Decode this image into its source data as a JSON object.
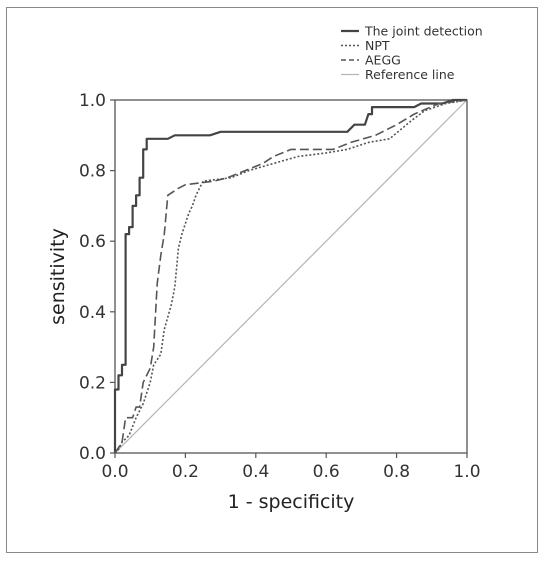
{
  "chart_data": {
    "type": "line",
    "title": "",
    "xlabel": "1 - specificity",
    "ylabel": "sensitivity",
    "xlim": [
      0.0,
      1.0
    ],
    "ylim": [
      0.0,
      1.0
    ],
    "xticks": [
      "0.0",
      "0.2",
      "0.4",
      "0.6",
      "0.8",
      "1.0"
    ],
    "yticks": [
      "0.0",
      "0.2",
      "0.4",
      "0.6",
      "0.8",
      "1.0"
    ],
    "grid": false,
    "legend_position": "top-right",
    "series": [
      {
        "name": "The joint detection",
        "style": "solid",
        "color": "#444444",
        "points": [
          [
            0,
            0
          ],
          [
            0,
            0.18
          ],
          [
            0.01,
            0.18
          ],
          [
            0.01,
            0.22
          ],
          [
            0.02,
            0.22
          ],
          [
            0.02,
            0.25
          ],
          [
            0.03,
            0.25
          ],
          [
            0.03,
            0.62
          ],
          [
            0.04,
            0.62
          ],
          [
            0.04,
            0.64
          ],
          [
            0.05,
            0.64
          ],
          [
            0.05,
            0.7
          ],
          [
            0.06,
            0.7
          ],
          [
            0.06,
            0.73
          ],
          [
            0.07,
            0.73
          ],
          [
            0.07,
            0.78
          ],
          [
            0.08,
            0.78
          ],
          [
            0.08,
            0.86
          ],
          [
            0.09,
            0.86
          ],
          [
            0.09,
            0.89
          ],
          [
            0.15,
            0.89
          ],
          [
            0.17,
            0.9
          ],
          [
            0.27,
            0.9
          ],
          [
            0.3,
            0.91
          ],
          [
            0.66,
            0.91
          ],
          [
            0.68,
            0.93
          ],
          [
            0.71,
            0.93
          ],
          [
            0.72,
            0.96
          ],
          [
            0.73,
            0.96
          ],
          [
            0.73,
            0.98
          ],
          [
            0.85,
            0.98
          ],
          [
            0.87,
            0.99
          ],
          [
            0.93,
            0.99
          ],
          [
            0.96,
            1.0
          ],
          [
            1.0,
            1.0
          ]
        ]
      },
      {
        "name": "NPT",
        "style": "dotted",
        "color": "#555555",
        "points": [
          [
            0,
            0
          ],
          [
            0.01,
            0.01
          ],
          [
            0.02,
            0.03
          ],
          [
            0.04,
            0.05
          ],
          [
            0.06,
            0.1
          ],
          [
            0.08,
            0.14
          ],
          [
            0.1,
            0.2
          ],
          [
            0.11,
            0.25
          ],
          [
            0.13,
            0.28
          ],
          [
            0.14,
            0.35
          ],
          [
            0.16,
            0.42
          ],
          [
            0.17,
            0.47
          ],
          [
            0.18,
            0.58
          ],
          [
            0.19,
            0.62
          ],
          [
            0.2,
            0.65
          ],
          [
            0.21,
            0.68
          ],
          [
            0.22,
            0.7
          ],
          [
            0.23,
            0.73
          ],
          [
            0.24,
            0.75
          ],
          [
            0.25,
            0.77
          ],
          [
            0.33,
            0.78
          ],
          [
            0.38,
            0.8
          ],
          [
            0.45,
            0.82
          ],
          [
            0.52,
            0.84
          ],
          [
            0.6,
            0.85
          ],
          [
            0.66,
            0.86
          ],
          [
            0.72,
            0.88
          ],
          [
            0.78,
            0.89
          ],
          [
            0.84,
            0.94
          ],
          [
            0.88,
            0.97
          ],
          [
            0.94,
            0.99
          ],
          [
            1.0,
            1.0
          ]
        ]
      },
      {
        "name": "AEGG",
        "style": "dashed",
        "color": "#555555",
        "points": [
          [
            0,
            0
          ],
          [
            0.02,
            0.03
          ],
          [
            0.03,
            0.1
          ],
          [
            0.05,
            0.1
          ],
          [
            0.06,
            0.13
          ],
          [
            0.07,
            0.13
          ],
          [
            0.08,
            0.2
          ],
          [
            0.1,
            0.24
          ],
          [
            0.11,
            0.3
          ],
          [
            0.12,
            0.48
          ],
          [
            0.13,
            0.56
          ],
          [
            0.14,
            0.62
          ],
          [
            0.15,
            0.73
          ],
          [
            0.18,
            0.75
          ],
          [
            0.2,
            0.76
          ],
          [
            0.28,
            0.77
          ],
          [
            0.32,
            0.78
          ],
          [
            0.37,
            0.8
          ],
          [
            0.42,
            0.82
          ],
          [
            0.45,
            0.84
          ],
          [
            0.5,
            0.86
          ],
          [
            0.62,
            0.86
          ],
          [
            0.67,
            0.88
          ],
          [
            0.74,
            0.9
          ],
          [
            0.8,
            0.93
          ],
          [
            0.85,
            0.96
          ],
          [
            0.92,
            0.99
          ],
          [
            1.0,
            1.0
          ]
        ]
      },
      {
        "name": "Reference line",
        "style": "solid-light",
        "color": "#b5b5b5",
        "points": [
          [
            0,
            0
          ],
          [
            1,
            1
          ]
        ]
      }
    ]
  }
}
